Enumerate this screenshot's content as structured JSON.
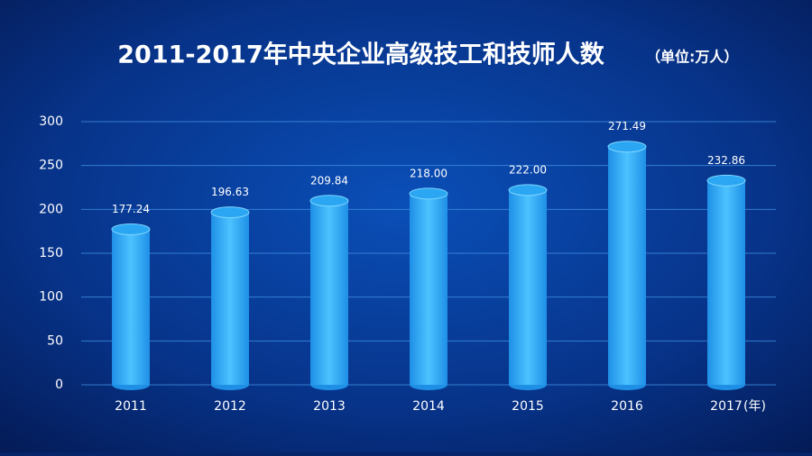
{
  "chart_data": {
    "type": "bar",
    "title": "2011-2017年中央企业高级技工和技师人数",
    "subtitle": "（单位:万人）",
    "x_unit": "(年)",
    "categories": [
      "2011",
      "2012",
      "2013",
      "2014",
      "2015",
      "2016",
      "2017"
    ],
    "values": [
      177.24,
      196.63,
      209.84,
      218,
      222,
      271.49,
      232.86
    ],
    "value_labels": [
      "177.24",
      "196.63",
      "209.84",
      "218.00",
      "222.00",
      "271.49",
      "232.86"
    ],
    "color": "#2aa6f2",
    "ylim": [
      0,
      300
    ],
    "yticks": [
      0,
      50,
      100,
      150,
      200,
      250,
      300
    ],
    "grid": true
  }
}
